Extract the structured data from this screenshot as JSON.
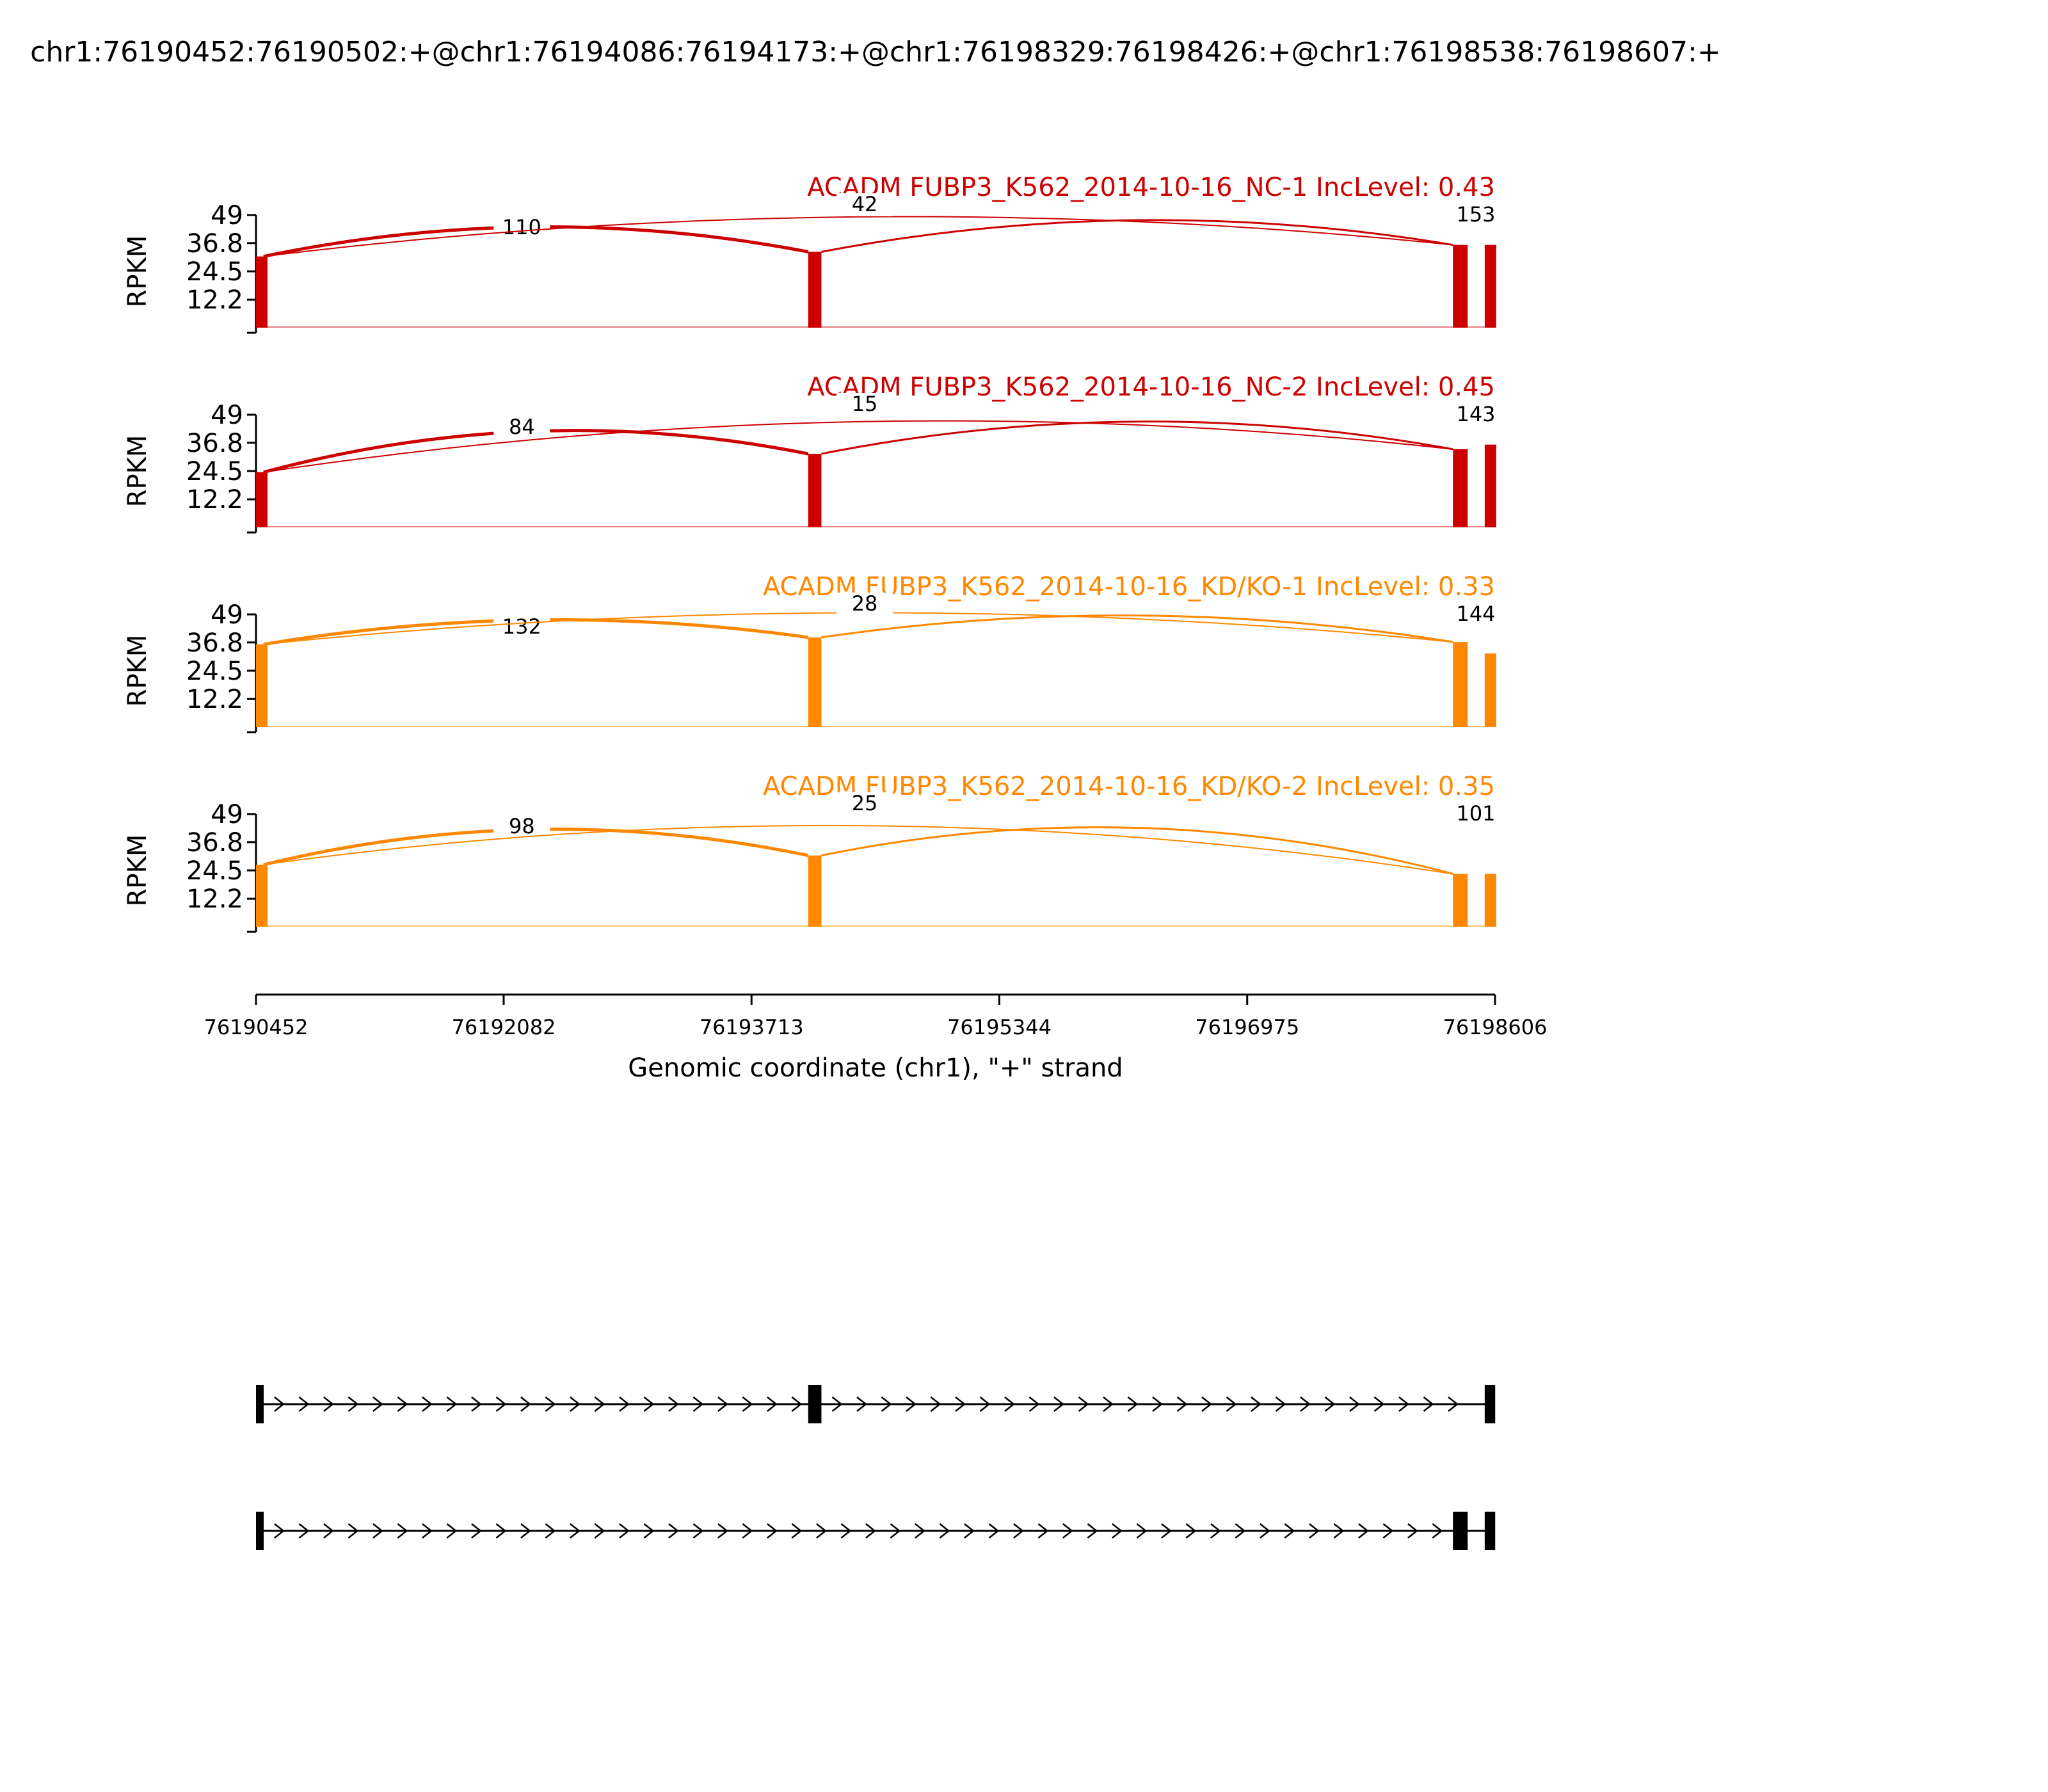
{
  "page": {
    "title": "chr1:76190452:76190502:+@chr1:76194086:76194173:+@chr1:76198329:76198426:+@chr1:76198538:76198607:+"
  },
  "chart_data": {
    "type": "area",
    "subtype": "sashimi",
    "xlabel": "Genomic coordinate (chr1), \"+\" strand",
    "ylabel": "RPKM",
    "xlim": [
      76190452,
      76198606
    ],
    "x_ticks": [
      76190452,
      76192082,
      76193713,
      76195344,
      76196975,
      76198606
    ],
    "x_tick_labels": [
      "76190452",
      "76192082",
      "76193713",
      "76195344",
      "76196975",
      "76198606"
    ],
    "ylim": [
      0,
      49
    ],
    "y_ticks": [
      12.2,
      24.5,
      36.8,
      49
    ],
    "y_tick_labels": [
      "12.2",
      "24.5",
      "36.8",
      "49"
    ],
    "exons": [
      [
        76190452,
        76190502
      ],
      [
        76194086,
        76194173
      ],
      [
        76198329,
        76198426
      ],
      [
        76198538,
        76198607
      ]
    ],
    "colors": {
      "nc": "#cc0000",
      "kd": "#ff8800"
    },
    "panels": [
      {
        "label": "ACADM FUBP3_K562_2014-10-16_NC-1 IncLevel: 0.43",
        "color": "#cc0000",
        "junctions": [
          {
            "from": 76190502,
            "to": 76194086,
            "count": "110"
          },
          {
            "from": 76190502,
            "to": 76198329,
            "count": "42"
          },
          {
            "from": 76194173,
            "to": 76198329,
            "count": "153"
          }
        ],
        "coverage": [
          {
            "start": 76190452,
            "end": 76190502,
            "value": 31
          },
          {
            "start": 76194086,
            "end": 76194173,
            "value": 33
          },
          {
            "start": 76198329,
            "end": 76198426,
            "value": 36
          },
          {
            "start": 76198538,
            "end": 76198607,
            "value": 36
          }
        ]
      },
      {
        "label": "ACADM FUBP3_K562_2014-10-16_NC-2 IncLevel: 0.45",
        "color": "#cc0000",
        "junctions": [
          {
            "from": 76190502,
            "to": 76194086,
            "count": "84"
          },
          {
            "from": 76190502,
            "to": 76198329,
            "count": "15"
          },
          {
            "from": 76194173,
            "to": 76198329,
            "count": "143"
          }
        ],
        "coverage": [
          {
            "start": 76190452,
            "end": 76190502,
            "value": 24
          },
          {
            "start": 76194086,
            "end": 76194173,
            "value": 32
          },
          {
            "start": 76198329,
            "end": 76198426,
            "value": 34
          },
          {
            "start": 76198538,
            "end": 76198607,
            "value": 36
          }
        ]
      },
      {
        "label": "ACADM FUBP3_K562_2014-10-16_KD/KO-1 IncLevel: 0.33",
        "color": "#ff8800",
        "junctions": [
          {
            "from": 76190502,
            "to": 76194086,
            "count": "132"
          },
          {
            "from": 76190502,
            "to": 76198329,
            "count": "28"
          },
          {
            "from": 76194173,
            "to": 76198329,
            "count": "144"
          }
        ],
        "coverage": [
          {
            "start": 76190452,
            "end": 76190502,
            "value": 36
          },
          {
            "start": 76194086,
            "end": 76194173,
            "value": 39
          },
          {
            "start": 76198329,
            "end": 76198426,
            "value": 37
          },
          {
            "start": 76198538,
            "end": 76198607,
            "value": 32
          }
        ]
      },
      {
        "label": "ACADM FUBP3_K562_2014-10-16_KD/KO-2 IncLevel: 0.35",
        "color": "#ff8800",
        "junctions": [
          {
            "from": 76190502,
            "to": 76194086,
            "count": "98"
          },
          {
            "from": 76190502,
            "to": 76198329,
            "count": "25"
          },
          {
            "from": 76194173,
            "to": 76198329,
            "count": "101"
          }
        ],
        "coverage": [
          {
            "start": 76190452,
            "end": 76190502,
            "value": 27
          },
          {
            "start": 76194086,
            "end": 76194173,
            "value": 31
          },
          {
            "start": 76198329,
            "end": 76198426,
            "value": 23
          },
          {
            "start": 76198538,
            "end": 76198607,
            "value": 23
          }
        ]
      }
    ],
    "isoforms": [
      {
        "exons": [
          [
            76190452,
            76190502
          ],
          [
            76194086,
            76194173
          ],
          [
            76198538,
            76198607
          ]
        ]
      },
      {
        "exons": [
          [
            76190452,
            76190502
          ],
          [
            76198329,
            76198426
          ],
          [
            76198538,
            76198607
          ]
        ]
      }
    ]
  }
}
